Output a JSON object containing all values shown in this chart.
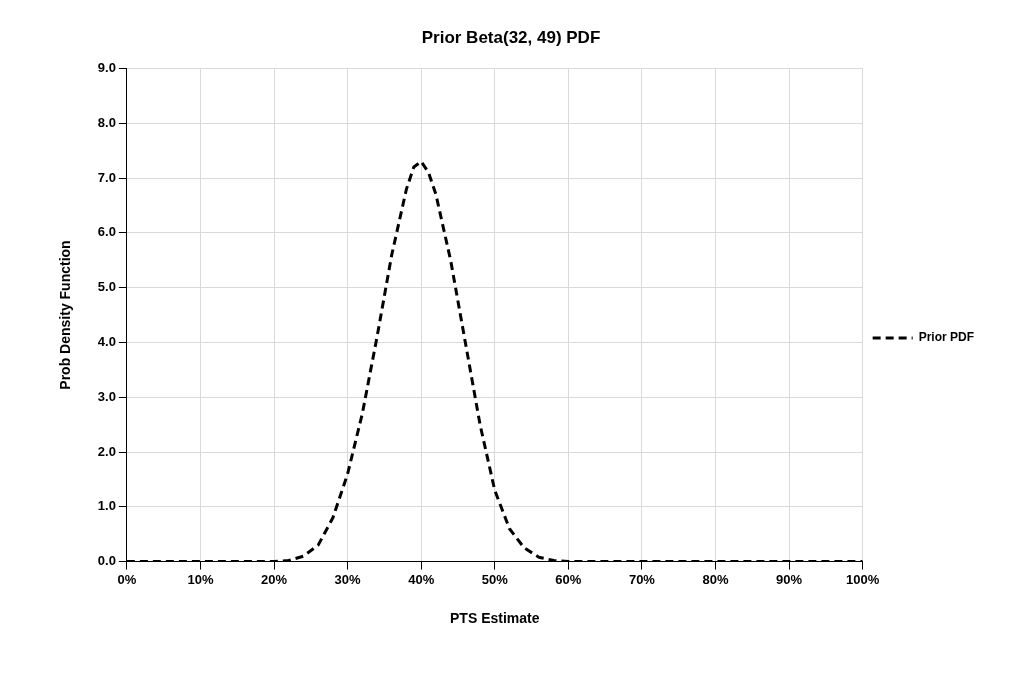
{
  "chart_data": {
    "type": "line",
    "title": "Prior Beta(32, 49) PDF",
    "xlabel": "PTS Estimate",
    "ylabel": "Prob Density Function",
    "x": [
      0,
      10,
      20,
      22,
      24,
      26,
      28,
      30,
      32,
      34,
      36,
      38,
      39,
      40,
      41,
      42,
      44,
      46,
      48,
      50,
      52,
      54,
      56,
      58,
      60,
      70,
      80,
      90,
      100
    ],
    "series": [
      {
        "name": "Prior PDF",
        "color": "#000000",
        "values": [
          0,
          0,
          0,
          0.02,
          0.1,
          0.3,
          0.8,
          1.6,
          2.7,
          4.1,
          5.6,
          6.8,
          7.2,
          7.3,
          7.1,
          6.7,
          5.5,
          4.0,
          2.5,
          1.3,
          0.6,
          0.25,
          0.08,
          0.02,
          0,
          0,
          0,
          0,
          0
        ]
      }
    ],
    "xlim": [
      0,
      100
    ],
    "xticks": [
      {
        "value": 0,
        "label": "0%"
      },
      {
        "value": 10,
        "label": "10%"
      },
      {
        "value": 20,
        "label": "20%"
      },
      {
        "value": 30,
        "label": "30%"
      },
      {
        "value": 40,
        "label": "40%"
      },
      {
        "value": 50,
        "label": "50%"
      },
      {
        "value": 60,
        "label": "60%"
      },
      {
        "value": 70,
        "label": "70%"
      },
      {
        "value": 80,
        "label": "80%"
      },
      {
        "value": 90,
        "label": "90%"
      },
      {
        "value": 100,
        "label": "100%"
      }
    ],
    "ylim": [
      0,
      9
    ],
    "yticks": [
      {
        "value": 0,
        "label": "0.0"
      },
      {
        "value": 1,
        "label": "1.0"
      },
      {
        "value": 2,
        "label": "2.0"
      },
      {
        "value": 3,
        "label": "3.0"
      },
      {
        "value": 4,
        "label": "4.0"
      },
      {
        "value": 5,
        "label": "5.0"
      },
      {
        "value": 6,
        "label": "6.0"
      },
      {
        "value": 7,
        "label": "7.0"
      },
      {
        "value": 8,
        "label": "8.0"
      },
      {
        "value": 9,
        "label": "9.0"
      }
    ],
    "grid": true,
    "legend": "right",
    "marker": "none",
    "line_style": "dashed"
  }
}
